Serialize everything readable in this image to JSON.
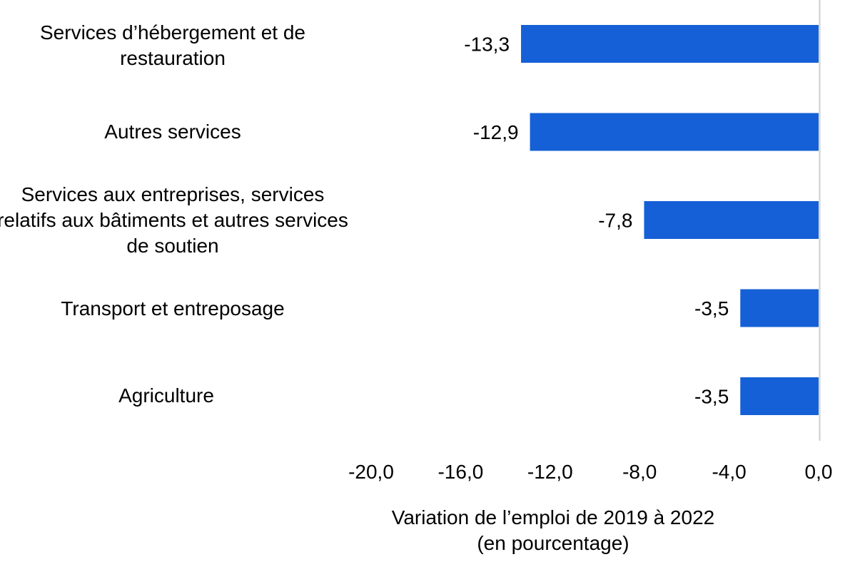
{
  "chart_data": {
    "type": "bar",
    "orientation": "horizontal",
    "categories": [
      "Services d’hébergement et de restauration",
      "Autres services",
      "Services aux entreprises, services relatifs aux bâtiments et autres services de soutien",
      "Transport et entreposage",
      "Agriculture"
    ],
    "values": [
      -13.3,
      -12.9,
      -7.8,
      -3.5,
      -3.5
    ],
    "value_labels": [
      "-13,3",
      "-12,9",
      "-7,8",
      "-3,5",
      "-3,5"
    ],
    "xlim": [
      -20,
      0
    ],
    "xticks": [
      -20,
      -16,
      -12,
      -8,
      -4,
      0
    ],
    "xtick_labels": [
      "-20,0",
      "-16,0",
      "-12,0",
      "-8,0",
      "-4,0",
      "0,0"
    ],
    "xlabel_lines": [
      "Variation de l’emploi de 2019 à 2022",
      "(en pourcentage)"
    ],
    "grid": false,
    "bar_color": "#1560d6"
  }
}
